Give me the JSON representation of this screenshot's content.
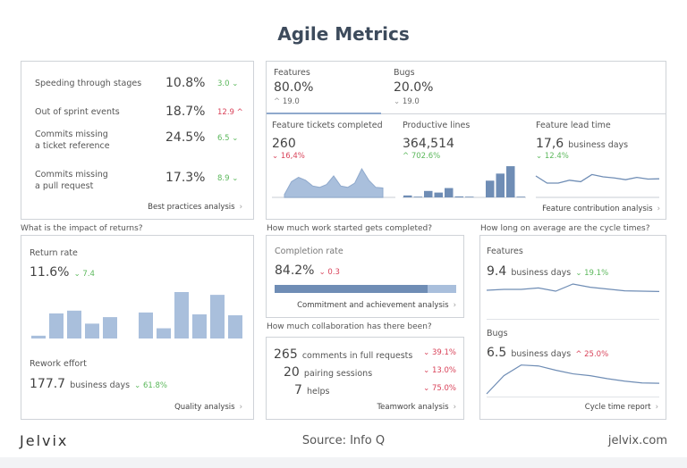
{
  "title": "Agile Metrics",
  "colors": {
    "accent": "#6f8db5",
    "light": "#a9bfdc",
    "green": "#5cb85c",
    "red": "#d9435a"
  },
  "best_practices": {
    "rows": [
      {
        "label": [
          "Speeding through stages"
        ],
        "value": "10.8%",
        "delta": "3.0",
        "dir": "down",
        "color": "green"
      },
      {
        "label": [
          "Out of sprint events"
        ],
        "value": "18.7%",
        "delta": "12.9",
        "dir": "up",
        "color": "red"
      },
      {
        "label": [
          "Commits missing",
          "a ticket reference"
        ],
        "value": "24.5%",
        "delta": "6.5",
        "dir": "down",
        "color": "green"
      },
      {
        "label": [
          "Commits missing",
          "a pull request"
        ],
        "value": "17.3%",
        "delta": "8.9",
        "dir": "down",
        "color": "green"
      }
    ],
    "link": "Best practices analysis"
  },
  "features_panel": {
    "tabs": [
      {
        "label": "Features",
        "value": "80.0%",
        "delta": "19.0",
        "dir": "up",
        "active": true
      },
      {
        "label": "Bugs",
        "value": "20.0%",
        "delta": "19.0",
        "dir": "down",
        "active": false
      }
    ],
    "metrics": [
      {
        "label": "Feature tickets completed",
        "value": "260",
        "unit": "",
        "delta": "16,4%",
        "dir": "down",
        "color": "red",
        "chart": [
          0.1,
          0.55,
          0.7,
          0.6,
          0.4,
          0.35,
          0.45,
          0.75,
          0.4,
          0.35,
          0.5,
          1.0,
          0.6,
          0.35,
          0.33
        ]
      },
      {
        "label": "Productive lines",
        "value": "364,514",
        "unit": "",
        "delta": "702.6%",
        "dir": "up",
        "color": "green",
        "chart": [
          0.06,
          0.02,
          0.2,
          0.15,
          0.29,
          0.03,
          0.02,
          0.0,
          0.52,
          0.74,
          0.97,
          0.02
        ]
      },
      {
        "label": "Feature lead time",
        "value": "17,6",
        "unit": "business days",
        "delta": "12.4%",
        "dir": "down",
        "color": "green",
        "chart": [
          0.75,
          0.5,
          0.5,
          0.6,
          0.55,
          0.8,
          0.72,
          0.68,
          0.62,
          0.7,
          0.64,
          0.65
        ]
      }
    ],
    "link": "Feature contribution analysis"
  },
  "returns": {
    "question": "What is the impact of returns?",
    "rate_label": "Return rate",
    "rate_value": "11.6%",
    "rate_delta": "7.4",
    "rate_dir": "down",
    "bars": [
      0.06,
      0.54,
      0.6,
      0.32,
      0.46,
      null,
      0.56,
      0.22,
      1.0,
      0.52,
      0.94,
      0.5
    ],
    "effort_label": "Rework effort",
    "effort_value": "177.7",
    "effort_unit": "business days",
    "effort_delta": "61.8%",
    "effort_dir": "down",
    "link": "Quality analysis"
  },
  "completion": {
    "question": "How much work started gets completed?",
    "label": "Completion rate",
    "value": "84.2%",
    "delta": "0.3",
    "dir": "down",
    "progress": 0.842,
    "link": "Commitment and achievement analysis"
  },
  "collaboration": {
    "question": "How much collaboration has there been?",
    "rows": [
      {
        "count": "265",
        "label": "comments in full requests",
        "delta": "39.1%",
        "dir": "down"
      },
      {
        "count": "20",
        "label": "pairing sessions",
        "delta": "13.0%",
        "dir": "down"
      },
      {
        "count": "7",
        "label": "helps",
        "delta": "75.0%",
        "dir": "down"
      }
    ],
    "link": "Teamwork analysis"
  },
  "cycle": {
    "question": "How long on average are the cycle times?",
    "features": {
      "label": "Features",
      "value": "9.4",
      "unit": "business days",
      "delta": "19.1%",
      "dir": "down",
      "color": "green",
      "chart": [
        0.45,
        0.5,
        0.5,
        0.58,
        0.4,
        0.8,
        0.62,
        0.52,
        0.42,
        0.4,
        0.38
      ]
    },
    "bugs": {
      "label": "Bugs",
      "value": "6.5",
      "unit": "business days",
      "delta": "25.0%",
      "dir": "up",
      "color": "red",
      "chart": [
        0.0,
        0.6,
        0.95,
        0.92,
        0.78,
        0.66,
        0.6,
        0.5,
        0.42,
        0.36,
        0.35
      ]
    },
    "link": "Cycle time report"
  },
  "footer": {
    "logo": "Jelvix",
    "source_label": "Source:",
    "source": "Info Q",
    "site": "jelvix.com"
  }
}
